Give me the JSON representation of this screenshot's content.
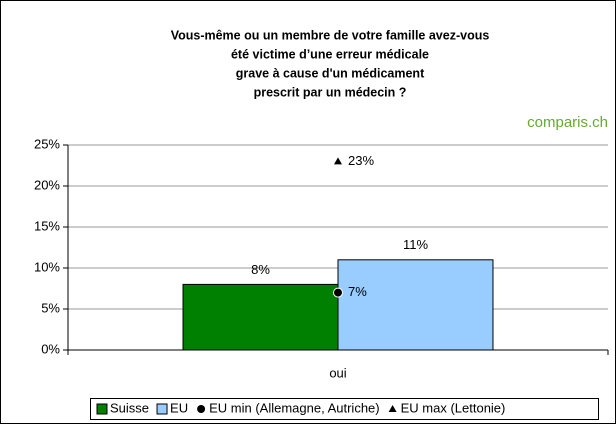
{
  "chart_data": {
    "type": "bar",
    "title": [
      "Vous-même ou un membre de votre famille avez-vous",
      "été victime d’une erreur médicale",
      "grave à cause d'un médicament",
      "prescrit par un médecin ?"
    ],
    "logo": "comparis.ch",
    "categories": [
      "oui"
    ],
    "series": [
      {
        "name": "Suisse",
        "type": "bar",
        "color": "#008000",
        "values": [
          8
        ],
        "value_labels": [
          "8%"
        ]
      },
      {
        "name": "EU",
        "type": "bar",
        "color": "#99ccff",
        "values": [
          11
        ],
        "value_labels": [
          "11%"
        ]
      },
      {
        "name": "EU min (Allemagne, Autriche)",
        "type": "point",
        "marker": "circle",
        "color": "#000000",
        "values": [
          7
        ],
        "value_labels": [
          "7%"
        ]
      },
      {
        "name": "EU max (Lettonie)",
        "type": "point",
        "marker": "triangle",
        "color": "#000000",
        "values": [
          23
        ],
        "value_labels": [
          "23%"
        ]
      }
    ],
    "ylim": [
      0,
      25
    ],
    "yticks": [
      {
        "value": 0,
        "label": "0%"
      },
      {
        "value": 5,
        "label": "5%"
      },
      {
        "value": 10,
        "label": "10%"
      },
      {
        "value": 15,
        "label": "15%"
      },
      {
        "value": 20,
        "label": "20%"
      },
      {
        "value": 25,
        "label": "25%"
      }
    ],
    "grid": true,
    "legend": "bottom"
  }
}
